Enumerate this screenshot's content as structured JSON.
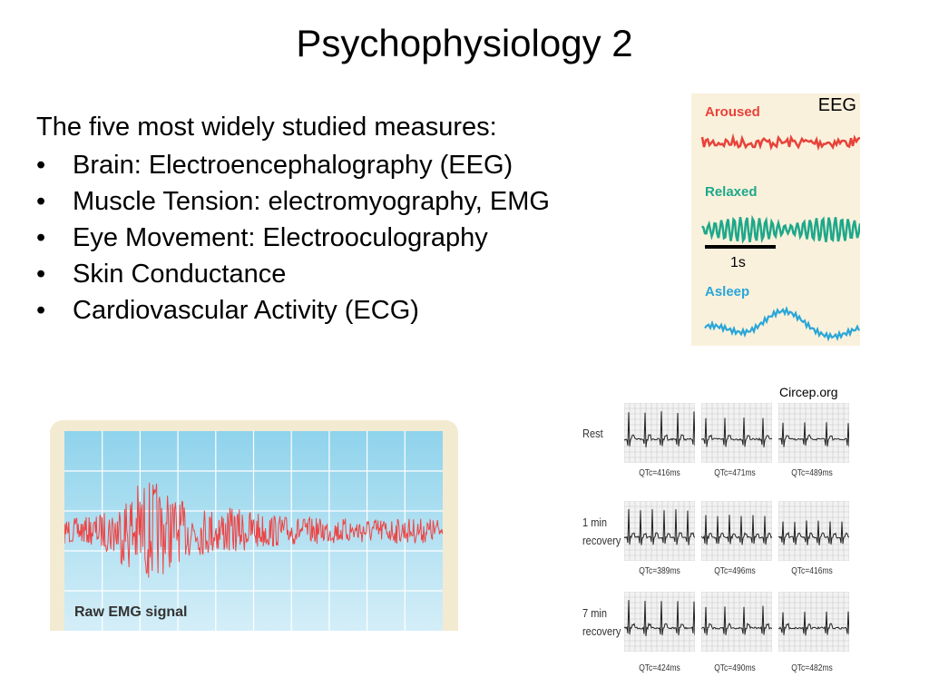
{
  "slide": {
    "title": "Psychophysiology 2",
    "intro": "The five most widely studied measures:",
    "bullet_symbol": "•",
    "bullets": [
      "Brain: Electroencephalography (EEG)",
      "Muscle Tension: electromyography, EMG",
      "Eye Movement: Electrooculography",
      "Skin Conductance",
      "Cardiovascular Activity (ECG)"
    ]
  },
  "eeg_figure": {
    "title": "EEG",
    "states": [
      {
        "label": "Aroused",
        "color": "#e8423a"
      },
      {
        "label": "Relaxed",
        "color": "#1ea88a"
      },
      {
        "label": "Asleep",
        "color": "#2aa6d8"
      }
    ],
    "scale_label": "1s"
  },
  "emg_figure": {
    "label": "Raw EMG signal",
    "signal_color": "#ee4444",
    "grid_color": "#a9dff0"
  },
  "ecg_figure": {
    "credit": "Circep.org",
    "rows": [
      {
        "label": [
          "Rest"
        ],
        "qtc": [
          "QTc=416ms",
          "QTc=471ms",
          "QTc=489ms"
        ]
      },
      {
        "label": [
          "1 min",
          "recovery"
        ],
        "qtc": [
          "QTc=389ms",
          "QTc=496ms",
          "QTc=416ms"
        ]
      },
      {
        "label": [
          "7 min",
          "recovery"
        ],
        "qtc": [
          "QTc=424ms",
          "QTc=490ms",
          "QTc=482ms"
        ]
      }
    ]
  }
}
